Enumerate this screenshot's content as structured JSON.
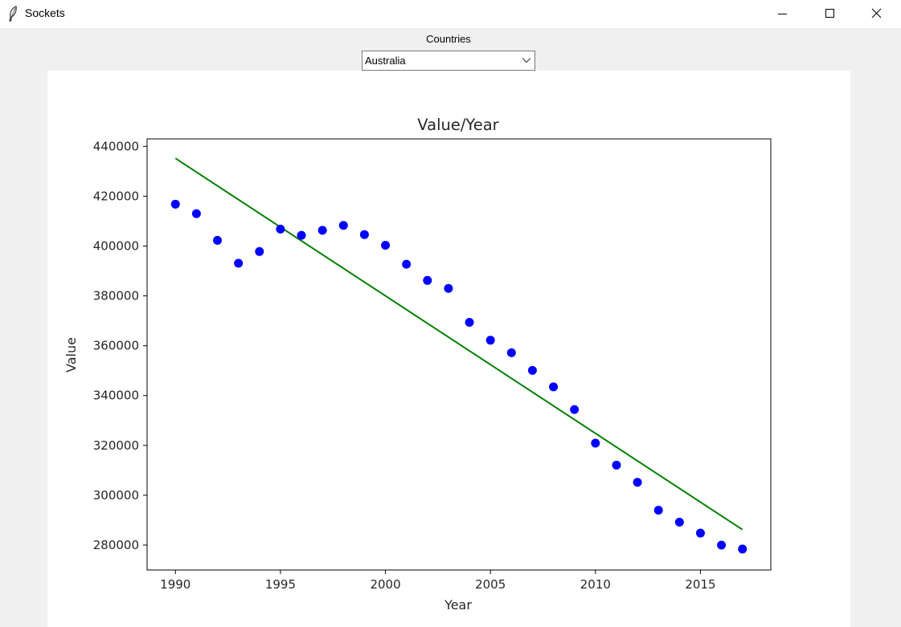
{
  "window": {
    "title": "Sockets",
    "icons": [
      "feather-icon",
      "minimize-icon",
      "maximize-icon",
      "close-icon"
    ]
  },
  "controls": {
    "countries_label": "Countries",
    "selected_country": "Australia"
  },
  "colors": {
    "points": "#0000ff",
    "trend_line": "#008000"
  },
  "chart_data": {
    "type": "scatter",
    "title": "Value/Year",
    "xlabel": "Year",
    "ylabel": "Value",
    "xlim": [
      1988.65,
      2018.35
    ],
    "ylim": [
      270000,
      443000
    ],
    "xticks": [
      1990,
      1995,
      2000,
      2005,
      2010,
      2015
    ],
    "yticks": [
      280000,
      300000,
      320000,
      340000,
      360000,
      380000,
      400000,
      420000,
      440000
    ],
    "grid": false,
    "points": {
      "x": [
        1990,
        1991,
        1992,
        1993,
        1994,
        1995,
        1996,
        1997,
        1998,
        1999,
        2000,
        2001,
        2002,
        2003,
        2004,
        2005,
        2006,
        2007,
        2008,
        2009,
        2010,
        2011,
        2012,
        2013,
        2014,
        2015,
        2016,
        2017
      ],
      "y": [
        416800,
        413000,
        402300,
        393100,
        397800,
        406800,
        404300,
        406300,
        408300,
        404600,
        400300,
        392700,
        386200,
        383000,
        369400,
        362200,
        357200,
        350100,
        343500,
        334400,
        320900,
        312100,
        305200,
        294000,
        289200,
        284800,
        280000,
        278400
      ]
    },
    "trend_line": {
      "x": [
        1990,
        2017
      ],
      "y": [
        435200,
        286200
      ]
    }
  }
}
